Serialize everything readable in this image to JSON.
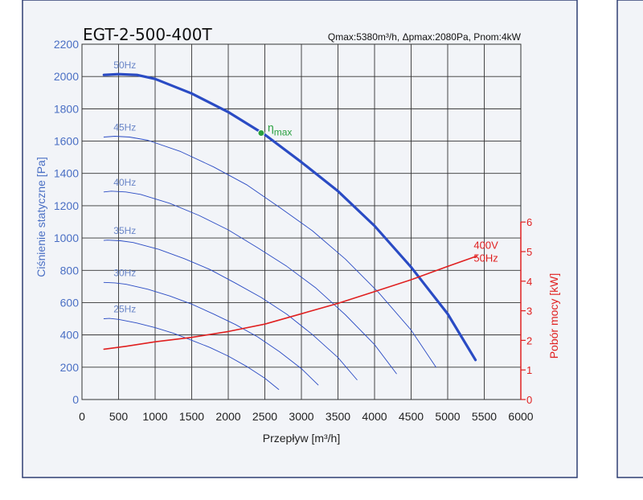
{
  "chart_data": {
    "type": "line",
    "title": "EGT-2-500-400T",
    "subtitle": "Qmax:5380m³/h, Δpmax:2080Pa, Pnom:4kW",
    "xlabel": "Przepływ [m³/h]",
    "ylabel": "Ciśnienie statyczne [Pa]",
    "y2label": "Pobór mocy [kW]",
    "xlim": [
      0,
      6000
    ],
    "ylim": [
      0,
      2200
    ],
    "y2lim": [
      0,
      6
    ],
    "x_ticks": [
      "0",
      "500",
      "1000",
      "1500",
      "2000",
      "2500",
      "3000",
      "3500",
      "4000",
      "4500",
      "5000",
      "5500",
      "6000"
    ],
    "y_ticks": [
      "0",
      "200",
      "400",
      "600",
      "800",
      "1000",
      "1200",
      "1400",
      "1600",
      "1800",
      "2000",
      "2200"
    ],
    "y2_ticks": [
      "0",
      "1",
      "2",
      "3",
      "4",
      "5",
      "6"
    ],
    "grid": true,
    "series": [
      {
        "name": "50Hz",
        "axis": "pressure",
        "color": "#2a4bc4",
        "x": [
          300,
          500,
          750,
          1000,
          1500,
          2000,
          2500,
          3000,
          3500,
          4000,
          4500,
          5000,
          5380
        ],
        "y": [
          2010,
          2015,
          2010,
          1985,
          1895,
          1780,
          1640,
          1470,
          1290,
          1075,
          820,
          530,
          245
        ]
      },
      {
        "name": "45Hz",
        "axis": "pressure",
        "color": "#2a4bc4",
        "x": [
          300,
          450,
          650,
          900,
          1350,
          1800,
          2250,
          2700,
          3150,
          3600,
          4050,
          4500,
          4840
        ],
        "y": [
          1625,
          1630,
          1625,
          1605,
          1535,
          1440,
          1330,
          1190,
          1045,
          870,
          665,
          430,
          200
        ]
      },
      {
        "name": "40Hz",
        "axis": "pressure",
        "color": "#2a4bc4",
        "x": [
          300,
          400,
          600,
          800,
          1200,
          1600,
          2000,
          2400,
          2800,
          3200,
          3600,
          4000,
          4300
        ],
        "y": [
          1285,
          1290,
          1285,
          1270,
          1215,
          1140,
          1050,
          940,
          825,
          690,
          525,
          340,
          160
        ]
      },
      {
        "name": "35Hz",
        "axis": "pressure",
        "color": "#2a4bc4",
        "x": [
          300,
          350,
          525,
          700,
          1050,
          1400,
          1750,
          2100,
          2450,
          2800,
          3150,
          3500,
          3760
        ],
        "y": [
          985,
          987,
          983,
          972,
          930,
          872,
          805,
          720,
          632,
          528,
          402,
          260,
          122
        ]
      },
      {
        "name": "30Hz",
        "axis": "pressure",
        "color": "#2a4bc4",
        "x": [
          300,
          450,
          600,
          900,
          1200,
          1500,
          1800,
          2100,
          2400,
          2700,
          3000,
          3230
        ],
        "y": [
          725,
          722,
          714,
          683,
          641,
          591,
          529,
          464,
          388,
          296,
          191,
          90
        ]
      },
      {
        "name": "25Hz",
        "axis": "pressure",
        "color": "#2a4bc4",
        "x": [
          300,
          375,
          500,
          750,
          1000,
          1250,
          1500,
          1750,
          2000,
          2250,
          2500,
          2690
        ],
        "y": [
          500,
          502,
          496,
          474,
          445,
          410,
          367,
          322,
          269,
          205,
          132,
          62
        ]
      },
      {
        "name": "400V 50Hz",
        "axis": "power",
        "color": "#e02020",
        "x": [
          300,
          600,
          1000,
          1500,
          2000,
          2500,
          3000,
          3500,
          4000,
          4500,
          5000,
          5400
        ],
        "y": [
          1.7,
          1.8,
          1.95,
          2.1,
          2.3,
          2.55,
          2.9,
          3.25,
          3.65,
          4.05,
          4.5,
          4.85
        ]
      }
    ],
    "eta_max": {
      "label": "η",
      "sub": "max",
      "x": 2450,
      "y": 1650
    }
  },
  "colors": {
    "pressure_axis": "#4a6fc4",
    "power_axis": "#e02020",
    "eta_point": "#2aa040",
    "frame": "#2f3f73"
  }
}
